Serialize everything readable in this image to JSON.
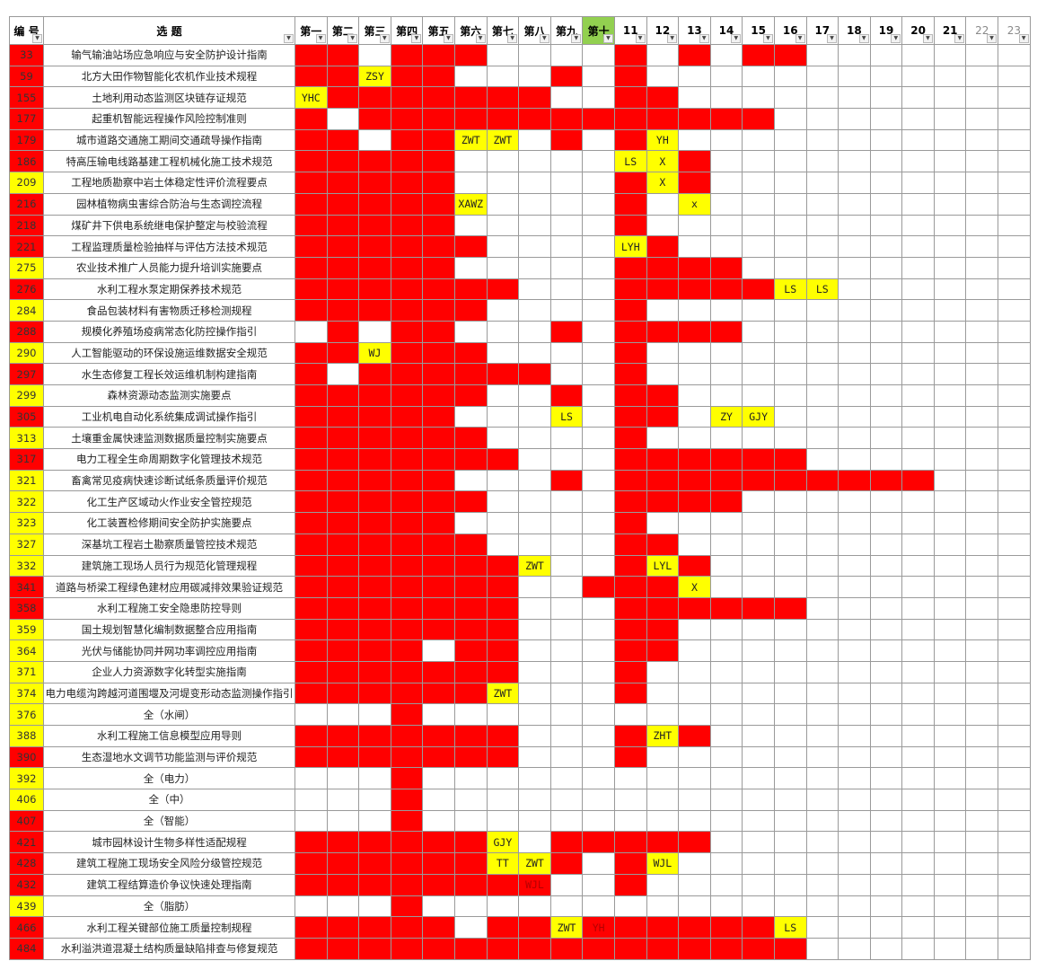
{
  "header": {
    "id": "编 号",
    "title": "选  题",
    "cols": [
      "第一",
      "第二",
      "第三",
      "第四",
      "第五",
      "第六",
      "第七",
      "第八",
      "第九",
      "第十",
      "11",
      "12",
      "13",
      "14",
      "15",
      "16",
      "17",
      "18",
      "19",
      "20",
      "21",
      "22",
      "23"
    ],
    "highlight_col_index": 9
  },
  "legend_colors": {
    "red": "#ff0000",
    "yellow": "#ffff00",
    "green_header": "#92d050"
  },
  "rows": [
    {
      "id": "33",
      "c": "r",
      "t": "输气输油站场应急响应与安全防护设计指南",
      "g": "RRWRRRWWWWRWRWRRWWWWWWW",
      "tags": {}
    },
    {
      "id": "59",
      "c": "r",
      "t": "北方大田作物智能化农机作业技术规程",
      "g": "RRYRRWWWRWRWWWWWWWWWWWW",
      "tags": {
        "2": "ZSY"
      }
    },
    {
      "id": "155",
      "c": "r",
      "t": "土地利用动态监测区块链存证规范",
      "g": "YRRRRRRRWWRRWWWWWWWWWWW",
      "tags": {
        "0": "YHC"
      }
    },
    {
      "id": "177",
      "c": "r",
      "t": "起重机智能远程操作风险控制准则",
      "g": "RWRRRRRRRRRRRRRWWWWWWWW",
      "tags": {}
    },
    {
      "id": "179",
      "c": "r",
      "t": "城市道路交通施工期间交通疏导操作指南",
      "g": "RRWRRYYWRWRYWWWWWWWWWWW",
      "tags": {
        "5": "ZWT",
        "6": "ZWT",
        "11": "YH"
      }
    },
    {
      "id": "186",
      "c": "r",
      "t": "特高压输电线路基建工程机械化施工技术规范",
      "g": "RRRRRWWWWWYYRWWWWWWWWWW",
      "tags": {
        "10": "LS",
        "11": "X"
      }
    },
    {
      "id": "209",
      "c": "y",
      "t": "工程地质勘察中岩土体稳定性评价流程要点",
      "g": "RRRRRWWWWWRYRWWWWWWWWWW",
      "tags": {
        "11": "X"
      }
    },
    {
      "id": "216",
      "c": "r",
      "t": "园林植物病虫害综合防治与生态调控流程",
      "g": "RRRRRYWWWWRWYWWWWWWWWWW",
      "tags": {
        "5": "XAWZ",
        "12": "x"
      }
    },
    {
      "id": "218",
      "c": "r",
      "t": "煤矿井下供电系统继电保护整定与校验流程",
      "g": "RRRRRWWWWWRWWWWWWWWWWWW",
      "tags": {}
    },
    {
      "id": "221",
      "c": "r",
      "t": "工程监理质量检验抽样与评估方法技术规范",
      "g": "RRRRRRWWWWYRWWWWWWWWWWW",
      "tags": {
        "10": "LYH"
      }
    },
    {
      "id": "275",
      "c": "y",
      "t": "农业技术推广人员能力提升培训实施要点",
      "g": "RRRRRWWWWWRRRRWWWWWWWWW",
      "tags": {}
    },
    {
      "id": "276",
      "c": "r",
      "t": "水利工程水泵定期保养技术规范",
      "g": "RRRRRRRWWWRRRRRYYWWWWWW",
      "tags": {
        "15": "LS",
        "16": "LS"
      }
    },
    {
      "id": "284",
      "c": "y",
      "t": "食品包装材料有害物质迁移检测规程",
      "g": "RRRRRRWWWWRWWWWWWWWWWWW",
      "tags": {}
    },
    {
      "id": "288",
      "c": "r",
      "t": "规模化养殖场疫病常态化防控操作指引",
      "g": "WRWRRWWWRWRRRRWWWWWWWWW",
      "tags": {}
    },
    {
      "id": "290",
      "c": "y",
      "t": "人工智能驱动的环保设施运维数据安全规范",
      "g": "RRYRRRWWWWRWWWWWWWWWWWW",
      "tags": {
        "2": "WJ"
      }
    },
    {
      "id": "297",
      "c": "r",
      "t": "水生态修复工程长效运维机制构建指南",
      "g": "RWRRRRRRWWRWWWWWWWWWWWW",
      "tags": {}
    },
    {
      "id": "299",
      "c": "y",
      "t": "森林资源动态监测实施要点",
      "g": "RRRRRRWWRWRRWWWWWWWWWWW",
      "tags": {}
    },
    {
      "id": "305",
      "c": "r",
      "t": "工业机电自动化系统集成调试操作指引",
      "g": "RRRRRWWWYWRRWYYWWWWWWWW",
      "tags": {
        "8": "LS",
        "13": "ZY",
        "14": "GJY"
      }
    },
    {
      "id": "313",
      "c": "y",
      "t": "土壤重金属快速监测数据质量控制实施要点",
      "g": "RRRRRRWWWWRWWWWWWWWWWWW",
      "tags": {}
    },
    {
      "id": "317",
      "c": "r",
      "t": "电力工程全生命周期数字化管理技术规范",
      "g": "RRRRRRRWWWRRRRRRWWWWWWW",
      "tags": {}
    },
    {
      "id": "321",
      "c": "y",
      "t": "畜禽常见疫病快速诊断试纸条质量评价规范",
      "g": "RRRRRWWWRWRRRRRRRRRRWWW",
      "tags": {}
    },
    {
      "id": "322",
      "c": "y",
      "t": "化工生产区域动火作业安全管控规范",
      "g": "RRRRRRWWWWRRRRWWWWWWWWW",
      "tags": {}
    },
    {
      "id": "323",
      "c": "y",
      "t": "化工装置检修期间安全防护实施要点",
      "g": "RRRRRWWWWWRWWWWWWWWWWWW",
      "tags": {}
    },
    {
      "id": "327",
      "c": "y",
      "t": "深基坑工程岩土勘察质量管控技术规范",
      "g": "RRRRRRWWWWRRWWWWWWWWWWW",
      "tags": {}
    },
    {
      "id": "332",
      "c": "y",
      "t": "建筑施工现场人员行为规范化管理规程",
      "g": "RRRRRRRYWWRYRWWWWWWWWWW",
      "tags": {
        "7": "ZWT",
        "11": "LYL"
      }
    },
    {
      "id": "341",
      "c": "r",
      "t": "道路与桥梁工程绿色建材应用碳减排效果验证规范",
      "g": "RRRRRRRWWRRRYWWWWWWWWWW",
      "tags": {
        "12": "X"
      }
    },
    {
      "id": "358",
      "c": "r",
      "t": "水利工程施工安全隐患防控导则",
      "g": "RRRRRRRWWWRRRRRRWWWWWWW",
      "tags": {}
    },
    {
      "id": "359",
      "c": "y",
      "t": "国土规划智慧化编制数据整合应用指南",
      "g": "RRRRRRRWWWRRWWWWWWWWWWW",
      "tags": {}
    },
    {
      "id": "364",
      "c": "y",
      "t": "光伏与储能协同并网功率调控应用指南",
      "g": "RRRRWRRWWWRRWWWWWWWWWWW",
      "tags": {}
    },
    {
      "id": "371",
      "c": "y",
      "t": "企业人力资源数字化转型实施指南",
      "g": "RRRRRRRWWWRWWWWWWWWWWWW",
      "tags": {}
    },
    {
      "id": "374",
      "c": "y",
      "t": "电力电缆沟跨越河道围堰及河堤变形动态监测操作指引",
      "g": "RRRRRRYWWWRWWWWWWWWWWWW",
      "tags": {
        "6": "ZWT"
      }
    },
    {
      "id": "376",
      "c": "y",
      "t": "全（水闸）",
      "g": "WWWRWWWWWWWWWWWWWWWWWWW",
      "tags": {}
    },
    {
      "id": "388",
      "c": "y",
      "t": "水利工程施工信息模型应用导则",
      "g": "RRRRRRRWWWRYRWWWWWWWWWW",
      "tags": {
        "11": "ZHT"
      }
    },
    {
      "id": "390",
      "c": "r",
      "t": "生态湿地水文调节功能监测与评价规范",
      "g": "RRRRRRRWWWRWWWWWWWWWWWW",
      "tags": {}
    },
    {
      "id": "392",
      "c": "y",
      "t": "全（电力）",
      "g": "WWWRWWWWWWWWWWWWWWWWWWW",
      "tags": {}
    },
    {
      "id": "406",
      "c": "y",
      "t": "全（中）",
      "g": "WWWRWWWWWWWWWWWWWWWWWWW",
      "tags": {}
    },
    {
      "id": "407",
      "c": "r",
      "t": "全（智能）",
      "g": "WWWRWWWWWWWWWWWWWWWWWWW",
      "tags": {}
    },
    {
      "id": "421",
      "c": "r",
      "t": "城市园林设计生物多样性适配规程",
      "g": "RRRRRRYWRRRRRWWWWWWWWWW",
      "tags": {
        "6": "GJY"
      }
    },
    {
      "id": "428",
      "c": "r",
      "t": "建筑工程施工现场安全风险分级管控规范",
      "g": "RRRRRRYYRWRYWWWWWWWWWWW",
      "tags": {
        "6": "TT",
        "7": "ZWT",
        "11": "WJL"
      }
    },
    {
      "id": "432",
      "c": "r",
      "t": "建筑工程结算造价争议快速处理指南",
      "g": "RRRRRRRRWWRWWWWWWWWWWWW",
      "tags": {
        "7": "WJL"
      }
    },
    {
      "id": "439",
      "c": "y",
      "t": "全（脂肪）",
      "g": "WWWRWWWWWWWWWWWWWWWWWWW",
      "tags": {}
    },
    {
      "id": "466",
      "c": "r",
      "t": "水利工程关键部位施工质量控制规程",
      "g": "RRRRRWRRYRRRRRRYWWWWWWW",
      "tags": {
        "8": "ZWT",
        "9": "YH",
        "15": "LS"
      }
    },
    {
      "id": "484",
      "c": "r",
      "t": "水利溢洪道混凝土结构质量缺陷排查与修复规范",
      "g": "RRRRRRRRRRRRRRRRWWWWWWW",
      "tags": {}
    }
  ]
}
